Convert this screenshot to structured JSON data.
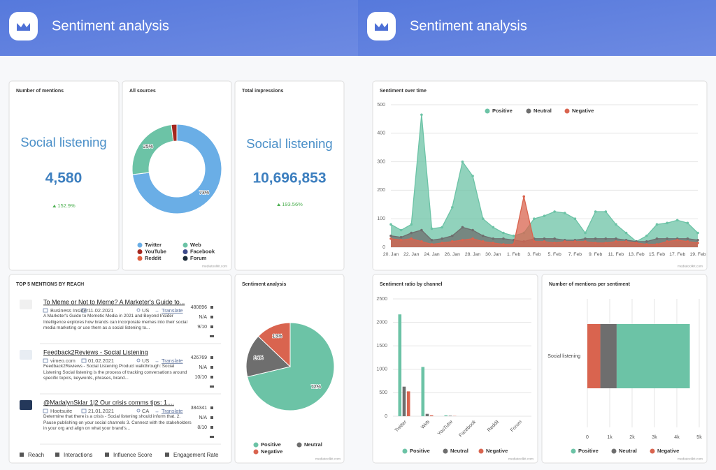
{
  "headers": [
    {
      "title": "Sentiment analysis"
    },
    {
      "title": "Sentiment analysis"
    }
  ],
  "cards": [
    {
      "title": "Number of mentions",
      "label": "Social listening",
      "value": "4,580",
      "change": "152.9%"
    },
    {
      "title": "Total impressions",
      "label": "Social listening",
      "value": "10,696,853",
      "change": "193.56%"
    }
  ],
  "mentions": {
    "title": "TOP 5 MENTIONS BY REACH",
    "items": [
      {
        "title": "To Meme or Not to Meme? A Marketer's Guide to...",
        "source": "Business Insider",
        "date": "11.02.2021",
        "country": "US",
        "translate": "Translate",
        "snippet": "A Marketer's Guide to Memetic Media in 2021 and Beyond Insider Intelligence explores how brands can incorporate memes into their social media marketing or use them as a social listening to...",
        "reach": "480896",
        "interactions": "N/A",
        "influence": "9/10"
      },
      {
        "title": "Feedback2Reviews - Social Listening",
        "source": "vimeo.com",
        "date": "01.02.2021",
        "country": "US",
        "translate": "Translate",
        "snippet": "Feedback2Reviews - Social Listening Product walkthrough: Social Listening Social listening is the process of tracking conversations around specific topics, keywords, phrases, brand...",
        "reach": "426769",
        "interactions": "N/A",
        "influence": "10/10"
      },
      {
        "title": "@MadalynSklar 1|2 Our crisis comms tips: 1....",
        "source": "Hootsuite",
        "date": "21.01.2021",
        "country": "CA",
        "translate": "Translate",
        "snippet": "Determine that there is a crisis - Social listening should inform that. 2. Pause publishing on your social channels 3. Connect with the stakeholders in your org and align on what your brand's...",
        "reach": "384341",
        "interactions": "N/A",
        "influence": "8/10"
      }
    ],
    "legend": [
      "Reach",
      "Interactions",
      "Influence Score",
      "Engagement Rate"
    ]
  },
  "watermark": "mediatoolkit.com",
  "chart_data": [
    {
      "type": "donut",
      "title": "All sources",
      "categories": [
        "Twitter",
        "Web",
        "YouTube",
        "Facebook",
        "Reddit",
        "Forum"
      ],
      "values": [
        73,
        25,
        2,
        0,
        0,
        0
      ],
      "value_labels": [
        "73%",
        "25%",
        null,
        null,
        null,
        null
      ],
      "colors": [
        "#6aaee6",
        "#6cc3a6",
        "#a4271f",
        "#3d4a8a",
        "#e0603f",
        "#1c2b38"
      ]
    },
    {
      "type": "area",
      "title": "Sentiment over time",
      "categories": [
        "20. Jan",
        null,
        "22. Jan",
        null,
        "24. Jan",
        null,
        "26. Jan",
        null,
        "28. Jan",
        null,
        "30. Jan",
        null,
        "1. Feb",
        null,
        "3. Feb",
        null,
        "5. Feb",
        null,
        "7. Feb",
        null,
        "9. Feb",
        null,
        "11. Feb",
        null,
        "13. Feb",
        null,
        "15. Feb",
        null,
        "17. Feb",
        null,
        "19. Feb"
      ],
      "series": [
        {
          "name": "Positive",
          "color": "#6cc3a6",
          "values": [
            80,
            60,
            80,
            465,
            65,
            70,
            140,
            300,
            250,
            100,
            70,
            50,
            40,
            50,
            100,
            110,
            125,
            120,
            100,
            50,
            125,
            125,
            80,
            50,
            20,
            40,
            80,
            85,
            95,
            85,
            50
          ]
        },
        {
          "name": "Neutral",
          "color": "#6e6e6e",
          "values": [
            40,
            35,
            50,
            60,
            25,
            30,
            40,
            70,
            60,
            40,
            30,
            30,
            25,
            20,
            30,
            30,
            30,
            25,
            25,
            30,
            30,
            30,
            30,
            25,
            20,
            20,
            30,
            30,
            30,
            30,
            25
          ]
        },
        {
          "name": "Negative",
          "color": "#d9644f",
          "values": [
            30,
            25,
            30,
            20,
            10,
            15,
            20,
            25,
            30,
            20,
            15,
            10,
            10,
            178,
            20,
            20,
            15,
            20,
            20,
            20,
            15,
            15,
            20,
            20,
            15,
            10,
            10,
            20,
            25,
            20,
            15
          ]
        }
      ],
      "ylim": [
        0,
        500
      ],
      "yticks": [
        0,
        100,
        200,
        300,
        400,
        500
      ],
      "grid": true,
      "legend": "top"
    },
    {
      "type": "pie",
      "title": "Sentiment analysis",
      "categories": [
        "Positive",
        "Neutral",
        "Negative"
      ],
      "values": [
        72,
        16,
        13
      ],
      "value_labels": [
        "72%",
        "16%",
        "13%"
      ],
      "colors": [
        "#6cc3a6",
        "#6e6e6e",
        "#d9644f"
      ]
    },
    {
      "type": "bar",
      "title": "Sentiment ratio by channel",
      "categories": [
        "Twitter",
        "Web",
        "YouTube",
        "Facebook",
        "Reddit",
        "Forum"
      ],
      "series": [
        {
          "name": "Positive",
          "color": "#6cc3a6",
          "values": [
            2170,
            1050,
            20,
            0,
            0,
            0
          ]
        },
        {
          "name": "Neutral",
          "color": "#6e6e6e",
          "values": [
            630,
            50,
            10,
            0,
            0,
            0
          ]
        },
        {
          "name": "Negative",
          "color": "#d9644f",
          "values": [
            530,
            20,
            5,
            0,
            0,
            0
          ]
        }
      ],
      "ylim": [
        0,
        2500
      ],
      "yticks": [
        0,
        500,
        1000,
        1500,
        2000,
        2500
      ],
      "grid": true,
      "legend": "bottom"
    },
    {
      "type": "stacked_hbar",
      "title": "Number of mentions per sentiment",
      "categories": [
        "Social listening"
      ],
      "series": [
        {
          "name": "Positive",
          "color": "#6cc3a6",
          "values": [
            3270
          ]
        },
        {
          "name": "Neutral",
          "color": "#6e6e6e",
          "values": [
            730
          ]
        },
        {
          "name": "Negative",
          "color": "#d9644f",
          "values": [
            580
          ]
        }
      ],
      "xlim": [
        0,
        5000
      ],
      "xticks": [
        0,
        {
          "value": 1000,
          "label": "1k"
        },
        {
          "value": 2000,
          "label": "2k"
        },
        {
          "value": 3000,
          "label": "3k"
        },
        {
          "value": 4000,
          "label": "4k"
        },
        {
          "value": 5000,
          "label": "5k"
        }
      ],
      "grid": true,
      "legend": "bottom"
    }
  ]
}
